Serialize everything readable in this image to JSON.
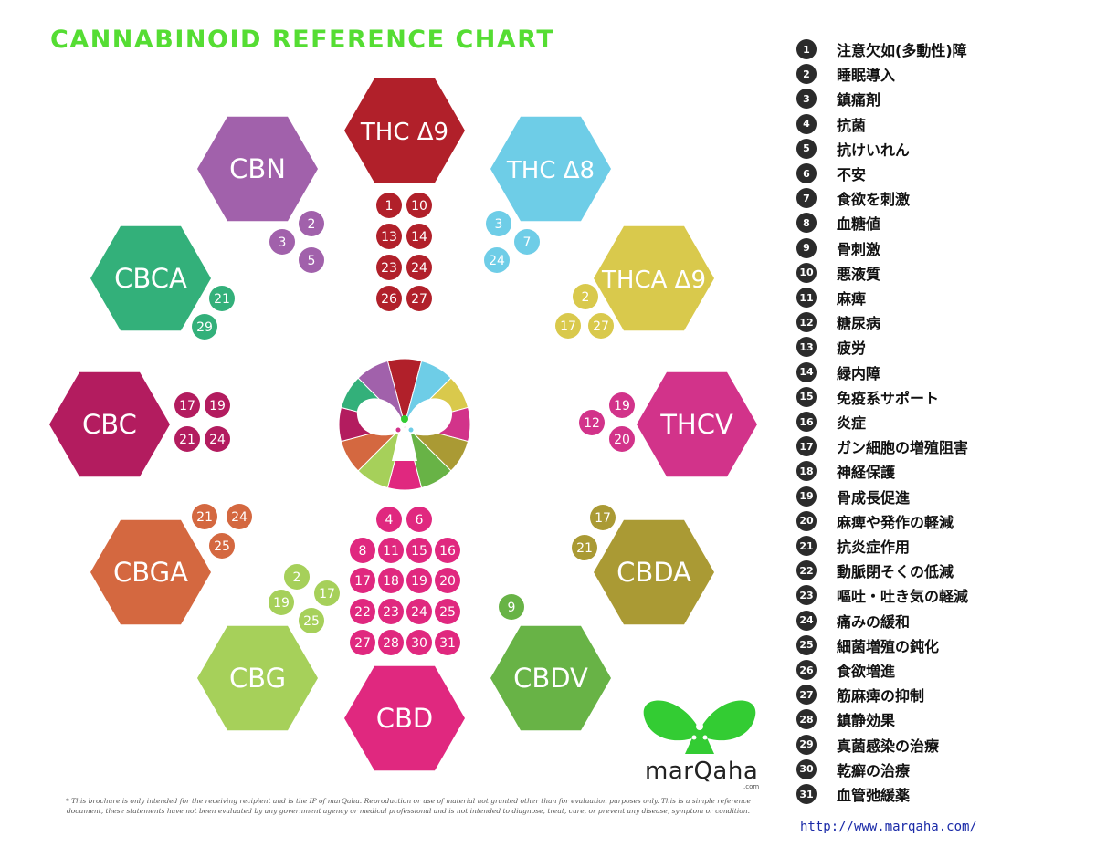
{
  "title": "CANNABINOID REFERENCE CHART",
  "title_color": "#55dd33",
  "cannabinoids": [
    {
      "name": "THC Δ9",
      "color": "#b1202a",
      "effects": [
        1,
        10,
        13,
        14,
        23,
        24,
        26,
        27
      ]
    },
    {
      "name": "THC Δ8",
      "color": "#6ecde7",
      "effects": [
        3,
        7,
        24
      ]
    },
    {
      "name": "THCA Δ9",
      "color": "#d9c94c",
      "effects": [
        2,
        17,
        27
      ]
    },
    {
      "name": "THCV",
      "color": "#d2338a",
      "effects": [
        12,
        19,
        20
      ]
    },
    {
      "name": "CBDA",
      "color": "#aa9a34",
      "effects": [
        17,
        21
      ]
    },
    {
      "name": "CBDV",
      "color": "#68b346",
      "effects": [
        9
      ]
    },
    {
      "name": "CBD",
      "color": "#e0287f",
      "effects": [
        4,
        6,
        8,
        11,
        15,
        16,
        17,
        18,
        19,
        20,
        22,
        23,
        24,
        25,
        27,
        28,
        30,
        31
      ]
    },
    {
      "name": "CBG",
      "color": "#a6d05a",
      "effects": [
        2,
        17,
        19,
        25
      ]
    },
    {
      "name": "CBGA",
      "color": "#d46840",
      "effects": [
        21,
        24,
        25
      ]
    },
    {
      "name": "CBC",
      "color": "#b31c5f",
      "effects": [
        17,
        19,
        21,
        24
      ]
    },
    {
      "name": "CBCA",
      "color": "#33b07a",
      "effects": [
        21,
        29
      ]
    },
    {
      "name": "CBN",
      "color": "#a161ab",
      "effects": [
        2,
        3,
        5
      ]
    }
  ],
  "legend": [
    {
      "num": "1",
      "label": "注意欠如(多動性)障"
    },
    {
      "num": "2",
      "label": "睡眠導入"
    },
    {
      "num": "3",
      "label": "鎮痛剤"
    },
    {
      "num": "4",
      "label": "抗菌"
    },
    {
      "num": "5",
      "label": "抗けいれん"
    },
    {
      "num": "6",
      "label": "不安"
    },
    {
      "num": "7",
      "label": "食欲を刺激"
    },
    {
      "num": "8",
      "label": "血糖値"
    },
    {
      "num": "9",
      "label": "骨刺激"
    },
    {
      "num": "10",
      "label": "悪液質"
    },
    {
      "num": "11",
      "label": "麻痺"
    },
    {
      "num": "12",
      "label": "糖尿病"
    },
    {
      "num": "13",
      "label": "疲労"
    },
    {
      "num": "14",
      "label": "緑内障"
    },
    {
      "num": "15",
      "label": "免疫系サポート"
    },
    {
      "num": "16",
      "label": "炎症"
    },
    {
      "num": "17",
      "label": "ガン細胞の増殖阻害"
    },
    {
      "num": "18",
      "label": "神経保護"
    },
    {
      "num": "19",
      "label": "骨成長促進"
    },
    {
      "num": "20",
      "label": "麻痺や発作の軽減"
    },
    {
      "num": "21",
      "label": "抗炎症作用"
    },
    {
      "num": "22",
      "label": "動脈閉そくの低減"
    },
    {
      "num": "23",
      "label": "嘔吐・吐き気の軽減"
    },
    {
      "num": "24",
      "label": "痛みの緩和"
    },
    {
      "num": "25",
      "label": "細菌増殖の鈍化"
    },
    {
      "num": "26",
      "label": "食欲増進"
    },
    {
      "num": "27",
      "label": "筋麻痺の抑制"
    },
    {
      "num": "28",
      "label": "鎮静効果"
    },
    {
      "num": "29",
      "label": "真菌感染の治療"
    },
    {
      "num": "30",
      "label": "乾癬の治療"
    },
    {
      "num": "31",
      "label": "血管弛緩薬"
    }
  ],
  "url": "http://www.marqaha.com/",
  "disclaimer": "* This brochure is only intended for the receiving recipient and is the IP of marQaha. Reproduction or use of material not granted other than for evaluation purposes only. This is a simple reference document, these statements have not been evaluated by any government agency or medical professional and is not intended to diagnose, treat, cure, or prevent any disease, symptom or condition.",
  "logo": {
    "text": "marQaha",
    "sub": ".com",
    "color": "#33cc33",
    "mark": "butterfly-logo"
  },
  "center_emblem": {
    "mark": "flower-emblem"
  }
}
